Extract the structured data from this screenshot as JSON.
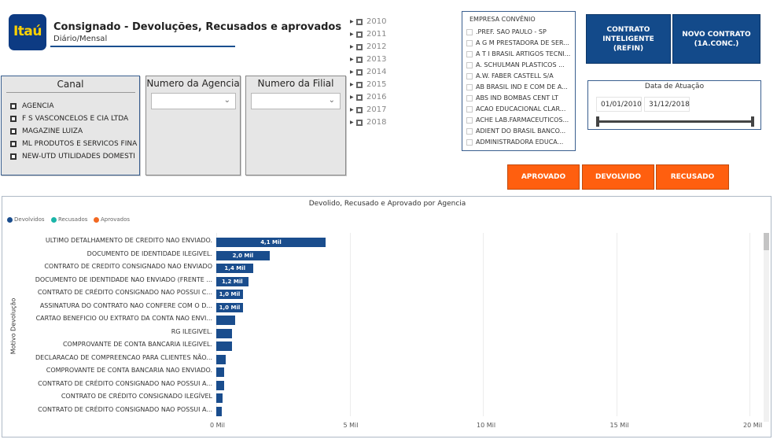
{
  "header": {
    "logo_text": "Itaú",
    "title": "Consignado - Devoluções, Recusados e aprovados",
    "subtitle": "Diário/Mensal"
  },
  "canal": {
    "title": "Canal",
    "items": [
      "AGENCIA",
      "F S VASCONCELOS E CIA LTDA",
      "MAGAZINE LUIZA",
      "ML PRODUTOS E SERVICOS FINA",
      "NEW-UTD UTILIDADES DOMESTI"
    ]
  },
  "agencia": {
    "title": "Numero da Agencia"
  },
  "filial": {
    "title": "Numero da Filial"
  },
  "years": [
    "2010",
    "2011",
    "2012",
    "2013",
    "2014",
    "2015",
    "2016",
    "2017",
    "2018"
  ],
  "empresa": {
    "title": "EMPRESA CONVÊNIO",
    "items": [
      ".PREF. SAO PAULO - SP",
      "A G M PRESTADORA DE SER...",
      "A T I BRASIL ARTIGOS TECNI...",
      "A. SCHULMAN PLASTICOS ...",
      "A.W. FABER CASTELL S/A",
      "AB BRASIL IND E COM DE A...",
      "ABS IND BOMBAS CENT LT",
      "ACAO EDUCACIONAL CLAR...",
      "ACHE LAB.FARMACEUTICOS...",
      "ADIENT DO BRASIL BANCO...",
      "ADMINISTRADORA EDUCA..."
    ]
  },
  "buttons": {
    "contrato_line1": "CONTRATO",
    "contrato_line2": "INTELIGENTE (REFIN)",
    "novo_line1": "NOVO CONTRATO",
    "novo_line2": "(1A.CONC.)",
    "aprovado": "APROVADO",
    "devolvido": "DEVOLVIDO",
    "recusado": "RECUSADO"
  },
  "date_filter": {
    "title": "Data de Atuação",
    "start": "01/01/2010",
    "end": "31/12/2018"
  },
  "colors": {
    "brand_blue": "#134a8a",
    "orange": "#ff5f0f",
    "devolvidos": "#1a4d8d",
    "recusados": "#1ab5a8",
    "aprovados": "#f26822"
  },
  "chart_data": {
    "type": "bar",
    "orientation": "horizontal",
    "title": "Devolido, Recusado e Aprovado por Agencia",
    "ylabel": "Motivo Devolução",
    "xlabel": "",
    "legend": [
      "Devolvidos",
      "Recusados",
      "Aprovados"
    ],
    "legend_position": "top-left",
    "xlim": [
      0,
      20
    ],
    "x_ticks": [
      "0 Mil",
      "5 Mil",
      "10 Mil",
      "15 Mil",
      "20 Mil"
    ],
    "categories": [
      "ULTIMO DETALHAMENTO DE CREDITO NAO ENVIADO.",
      "DOCUMENTO DE IDENTIDADE ILEGIVEL.",
      "CONTRATO DE CREDITO CONSIGNADO NAO ENVIADO",
      "DOCUMENTO DE IDENTIDADE NAO ENVIADO (FRENTE ...",
      "CONTRATO DE CRÉDITO CONSIGNADO NAO POSSUI C...",
      "ASSINATURA DO CONTRATO NAO CONFERE COM O D...",
      "CARTAO BENEFICIO OU EXTRATO DA CONTA NAO ENVI...",
      "RG ILEGIVEL.",
      "COMPROVANTE DE CONTA BANCARIA ILEGIVEL.",
      "DECLARACAO DE COMPREENCAO PARA CLIENTES NÃO...",
      "COMPROVANTE DE CONTA BANCARIA NAO ENVIADO.",
      "CONTRATO DE CRÉDITO CONSIGNADO NAO POSSUI A...",
      "CONTRATO DE CRÉDITO CONSIGNADO ILEGÍVEL",
      "CONTRATO DE CRÉDITO CONSIGNADO NAO POSSUI A..."
    ],
    "series": [
      {
        "name": "Devolvidos",
        "values": [
          4.1,
          2.0,
          1.4,
          1.2,
          1.0,
          1.0,
          0.7,
          0.6,
          0.6,
          0.35,
          0.3,
          0.3,
          0.25,
          0.22
        ]
      }
    ],
    "data_labels": [
      "4,1 Mil",
      "2,0 Mil",
      "1,4 Mil",
      "1,2 Mil",
      "1,0 Mil",
      "1,0 Mil",
      "",
      "",
      "",
      "",
      "",
      "",
      "",
      ""
    ]
  }
}
